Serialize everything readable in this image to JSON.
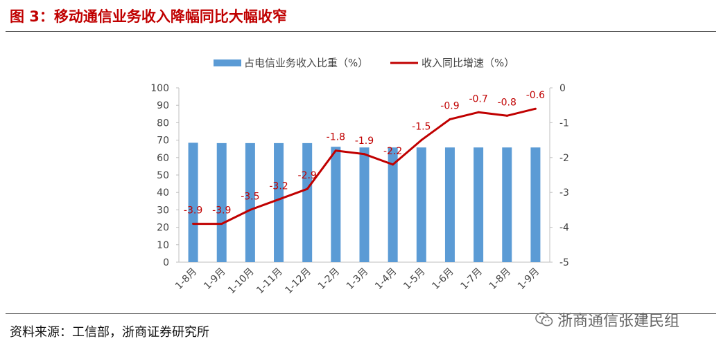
{
  "header": {
    "title": "图 3：移动通信业务收入降幅同比大幅收窄"
  },
  "footer": {
    "source": "资料来源：工信部，浙商证券研究所",
    "watermark": "浙商通信张建民组"
  },
  "colors": {
    "bar": "#5b9bd5",
    "line": "#c00000",
    "title": "#c00000"
  },
  "chart_data": {
    "type": "bar",
    "title": "",
    "categories": [
      "1-8月",
      "1-9月",
      "1-10月",
      "1-11月",
      "1-12月",
      "1-2月",
      "1-3月",
      "1-4月",
      "1-5月",
      "1-6月",
      "1-7月",
      "1-8月",
      "1-9月"
    ],
    "series": [
      {
        "name": "占电信业务收入比重（%）",
        "type": "bar",
        "axis": "left",
        "values": [
          68.5,
          68.3,
          68.3,
          68.3,
          68.3,
          66.2,
          65.8,
          65.8,
          65.8,
          65.8,
          65.8,
          65.8,
          65.8
        ]
      },
      {
        "name": "收入同比增速（%）",
        "type": "line",
        "axis": "right",
        "values": [
          -3.9,
          -3.9,
          -3.5,
          -3.2,
          -2.9,
          -1.8,
          -1.9,
          -2.2,
          -1.5,
          -0.9,
          -0.7,
          -0.8,
          -0.6
        ],
        "labels": [
          "-3.9",
          "-3.9",
          "-3.5",
          "-3.2",
          "-2.9",
          "-1.8",
          "-1.9",
          "-2.2",
          "-1.5",
          "-0.9",
          "-0.7",
          "-0.8",
          "-0.6"
        ]
      }
    ],
    "y_left": {
      "min": 0,
      "max": 100,
      "ticks": [
        "0",
        "10",
        "20",
        "30",
        "40",
        "50",
        "60",
        "70",
        "80",
        "90",
        "100"
      ]
    },
    "y_right": {
      "min": -5,
      "max": 0,
      "ticks": [
        "-5",
        "-4",
        "-3",
        "-2",
        "-1",
        "0"
      ]
    },
    "legend_position": "top",
    "grid": false
  }
}
